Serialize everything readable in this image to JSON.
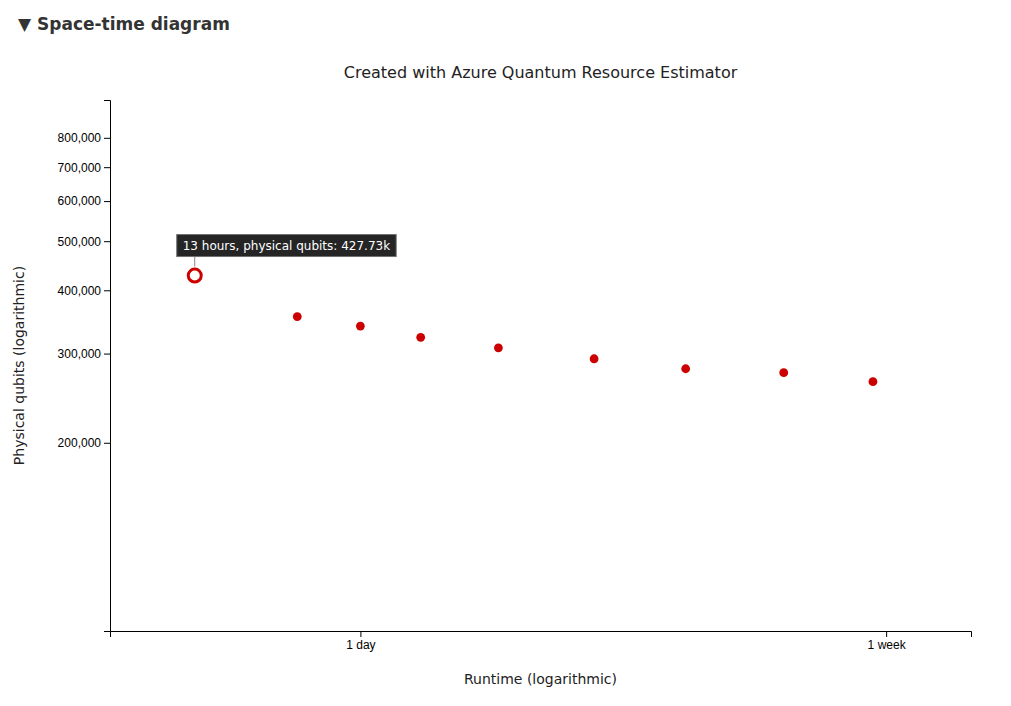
{
  "chart_data": {
    "type": "scatter",
    "title": "Created with Azure Quantum Resource Estimator",
    "subtitle": "▼ Space-time diagram",
    "x_label": "Runtime (logarithmic)",
    "y_label": "Physical qubits (logarithmic)",
    "x": [
      13,
      19,
      24,
      30,
      40,
      57,
      80,
      115,
      160
    ],
    "values": [
      427730,
      355000,
      340000,
      323000,
      308000,
      293000,
      280000,
      275000,
      264000
    ],
    "color": "#cc0000",
    "log": true,
    "grid": false,
    "xlim": [
      9.5,
      230
    ],
    "ylim": [
      85000,
      950000
    ],
    "xticks": [
      {
        "value": 24,
        "label": "1 day"
      },
      {
        "value": 168,
        "label": "1 week"
      }
    ],
    "yticks": [
      {
        "value": 200000,
        "label": "200,000"
      },
      {
        "value": 300000,
        "label": "300,000"
      },
      {
        "value": 400000,
        "label": "400,000"
      },
      {
        "value": 500000,
        "label": "500,000"
      },
      {
        "value": 600000,
        "label": "600,000"
      },
      {
        "value": 700000,
        "label": "700,000"
      },
      {
        "value": 800000,
        "label": "800,000"
      }
    ],
    "annotations": [
      {
        "text": "13 hours, physical qubits: 427.73k",
        "x": 13,
        "y": 427730
      }
    ]
  }
}
